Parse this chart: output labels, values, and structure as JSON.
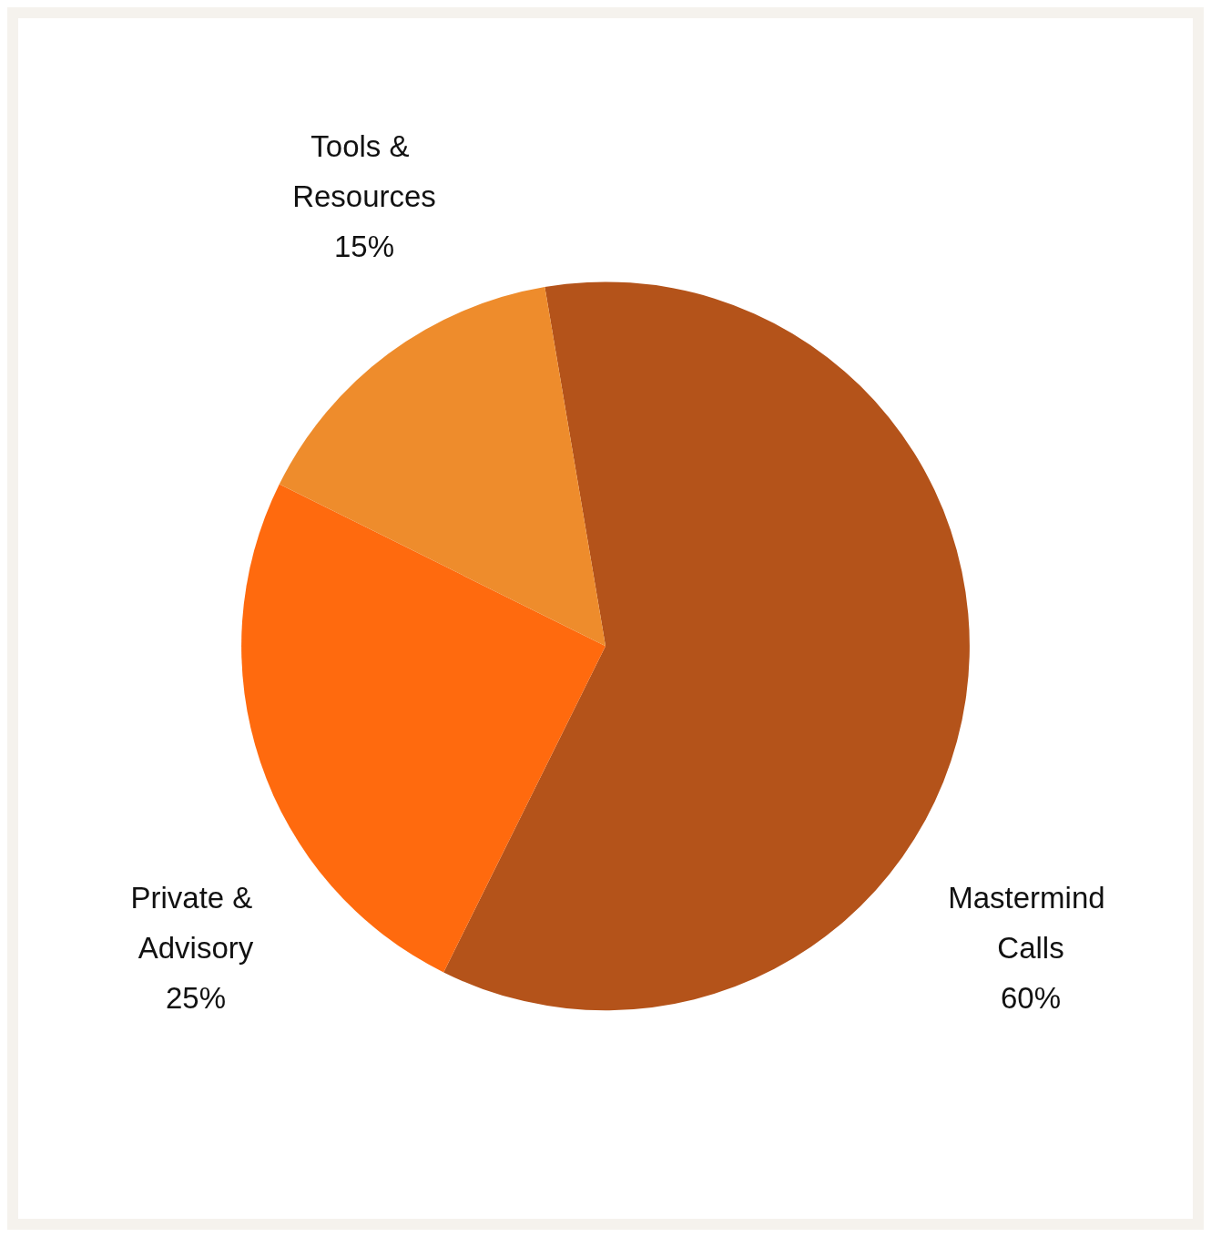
{
  "chart_data": {
    "type": "pie",
    "categories": [
      "Mastermind Calls",
      "Private & Advisory",
      "Tools & Resources"
    ],
    "values": [
      60,
      25,
      15
    ],
    "colors": [
      "#b4531a",
      "#ff6a0e",
      "#ee8c2c"
    ],
    "value_labels": [
      "60%",
      "25%",
      "15%"
    ],
    "legend": false
  }
}
